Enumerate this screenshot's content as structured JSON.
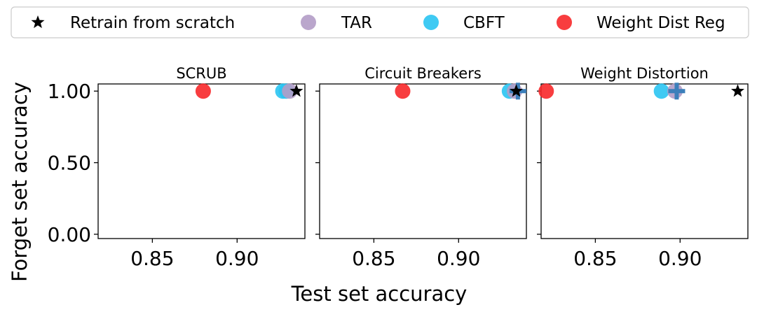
{
  "chart_data": {
    "type": "scatter",
    "ylabel": "Forget set accuracy",
    "xlabel": "Test set accuracy",
    "legend": {
      "placement": "top",
      "entries": [
        {
          "label": "Retrain from scratch",
          "marker": "star",
          "color": "#000000"
        },
        {
          "label": "TAR",
          "marker": "circle",
          "color": "#b39cc6"
        },
        {
          "label": "CBFT",
          "marker": "circle",
          "color": "#2ac4f2"
        },
        {
          "label": "Weight Dist Reg",
          "marker": "circle",
          "color": "#f7282a"
        }
      ]
    },
    "yticks": [
      "0.00",
      "0.50",
      "1.00"
    ],
    "ylim": [
      -0.03,
      1.05
    ],
    "panels": [
      {
        "title": "SCRUB",
        "xlim": [
          0.818,
          0.94
        ],
        "xticks": [
          "0.85",
          "0.90"
        ],
        "points": [
          {
            "series": "Weight Dist Reg",
            "x": 0.88,
            "y": 1.0
          },
          {
            "series": "CBFT",
            "x": 0.927,
            "y": 1.0
          },
          {
            "series": "CBFT",
            "x": 0.929,
            "y": 1.0
          },
          {
            "series": "TAR",
            "x": 0.931,
            "y": 1.0
          },
          {
            "series": "Retrain from scratch",
            "x": 0.935,
            "y": 1.0
          }
        ],
        "plus_markers": []
      },
      {
        "title": "Circuit Breakers",
        "xlim": [
          0.818,
          0.94
        ],
        "xticks": [
          "0.85",
          "0.90"
        ],
        "points": [
          {
            "series": "Weight Dist Reg",
            "x": 0.867,
            "y": 1.0
          },
          {
            "series": "CBFT",
            "x": 0.93,
            "y": 1.0
          },
          {
            "series": "TAR",
            "x": 0.933,
            "y": 1.0
          },
          {
            "series": "Retrain from scratch",
            "x": 0.934,
            "y": 1.0
          }
        ],
        "plus_markers": [
          {
            "x": 0.935,
            "y": 1.0,
            "color": "#3c7fba"
          }
        ]
      },
      {
        "title": "Weight Distortion",
        "xlim": [
          0.818,
          0.94
        ],
        "xticks": [
          "0.85",
          "0.90"
        ],
        "points": [
          {
            "series": "Weight Dist Reg",
            "x": 0.821,
            "y": 1.0
          },
          {
            "series": "CBFT",
            "x": 0.889,
            "y": 1.0
          },
          {
            "series": "TAR",
            "x": 0.897,
            "y": 1.0
          },
          {
            "series": "Retrain from scratch",
            "x": 0.934,
            "y": 1.0
          }
        ],
        "plus_markers": [
          {
            "x": 0.898,
            "y": 1.0,
            "color": "#3c7fba"
          }
        ]
      }
    ]
  }
}
